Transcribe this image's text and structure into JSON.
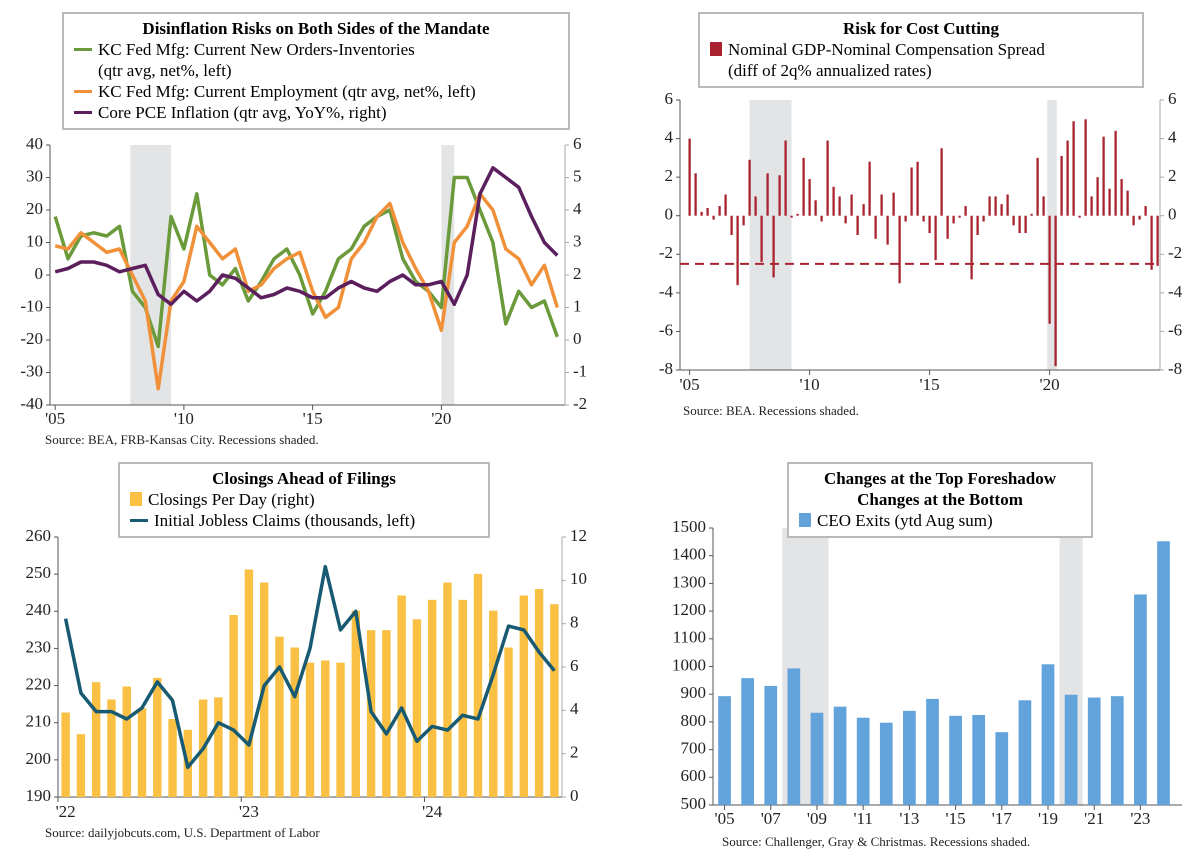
{
  "chart_data": [
    {
      "type": "line",
      "title": "Disinflation Risks on Both Sides of the Mandate",
      "source": "Source: BEA, FRB-Kansas City. Recessions shaded.",
      "x": [
        2005,
        2005.5,
        2006,
        2006.5,
        2007,
        2007.5,
        2008,
        2008.5,
        2009,
        2009.5,
        2010,
        2010.5,
        2011,
        2011.5,
        2012,
        2012.5,
        2013,
        2013.5,
        2014,
        2014.5,
        2015,
        2015.5,
        2016,
        2016.5,
        2017,
        2017.5,
        2018,
        2018.5,
        2019,
        2019.5,
        2020,
        2020.5,
        2021,
        2021.5,
        2022,
        2022.5,
        2023,
        2023.5,
        2024,
        2024.5
      ],
      "series": [
        {
          "name": "KC Fed Mfg: Current New Orders-Inventories\n(qtr avg, net%, left)",
          "color": "#6b9a3b",
          "axis": "y",
          "values": [
            18,
            5,
            12,
            13,
            12,
            15,
            -5,
            -10,
            -22,
            18,
            8,
            25,
            0,
            -3,
            2,
            -8,
            -2,
            5,
            8,
            0,
            -12,
            -5,
            5,
            8,
            15,
            18,
            20,
            5,
            -2,
            -5,
            -10,
            30,
            30,
            20,
            10,
            -15,
            -5,
            -10,
            -8,
            -19
          ]
        },
        {
          "name": "KC Fed Mfg: Current Employment (qtr avg, net%, left)",
          "color": "#f0913a",
          "axis": "y",
          "values": [
            9,
            8,
            13,
            10,
            7,
            8,
            0,
            -8,
            -35,
            -8,
            -2,
            15,
            10,
            5,
            8,
            -5,
            -3,
            2,
            5,
            7,
            -5,
            -13,
            -10,
            5,
            10,
            18,
            22,
            10,
            2,
            -5,
            -17,
            10,
            15,
            25,
            20,
            8,
            5,
            -3,
            3,
            -10
          ]
        },
        {
          "name": "Core PCE Inflation (qtr avg, YoY%, right)",
          "color": "#5b1f5e",
          "axis": "y2",
          "values": [
            2.1,
            2.2,
            2.4,
            2.4,
            2.3,
            2.1,
            2.2,
            2.3,
            1.4,
            1.1,
            1.5,
            1.2,
            1.5,
            2.0,
            1.9,
            1.6,
            1.3,
            1.4,
            1.6,
            1.5,
            1.3,
            1.3,
            1.6,
            1.8,
            1.6,
            1.5,
            1.8,
            2.0,
            1.7,
            1.7,
            1.8,
            1.1,
            2.0,
            4.5,
            5.3,
            5.0,
            4.7,
            3.8,
            3.0,
            2.6
          ]
        }
      ],
      "xlim": [
        2004.8,
        2024.8
      ],
      "xticks": [
        {
          "value": 2005,
          "label": "'05"
        },
        {
          "value": 2010,
          "label": "'10"
        },
        {
          "value": 2015,
          "label": "'15"
        },
        {
          "value": 2020,
          "label": "'20"
        }
      ],
      "ylim": [
        -40,
        40
      ],
      "yticks": [
        -40,
        -30,
        -20,
        -10,
        0,
        10,
        20,
        30,
        40
      ],
      "y2lim": [
        -2,
        6
      ],
      "y2ticks": [
        -2,
        -1,
        0,
        1,
        2,
        3,
        4,
        5,
        6
      ],
      "recessions": [
        [
          2007.92,
          2009.5
        ],
        [
          2020.0,
          2020.5
        ]
      ]
    },
    {
      "type": "bar",
      "title": "Risk for Cost Cutting",
      "source": "Source: BEA. Recessions shaded.",
      "x": [
        2005,
        2005.25,
        2005.5,
        2005.75,
        2006,
        2006.25,
        2006.5,
        2006.75,
        2007,
        2007.25,
        2007.5,
        2007.75,
        2008,
        2008.25,
        2008.5,
        2008.75,
        2009,
        2009.25,
        2009.5,
        2009.75,
        2010,
        2010.25,
        2010.5,
        2010.75,
        2011,
        2011.25,
        2011.5,
        2011.75,
        2012,
        2012.25,
        2012.5,
        2012.75,
        2013,
        2013.25,
        2013.5,
        2013.75,
        2014,
        2014.25,
        2014.5,
        2014.75,
        2015,
        2015.25,
        2015.5,
        2015.75,
        2016,
        2016.25,
        2016.5,
        2016.75,
        2017,
        2017.25,
        2017.5,
        2017.75,
        2018,
        2018.25,
        2018.5,
        2018.75,
        2019,
        2019.25,
        2019.5,
        2019.75,
        2020,
        2020.25,
        2020.5,
        2020.75,
        2021,
        2021.25,
        2021.5,
        2021.75,
        2022,
        2022.25,
        2022.5,
        2022.75,
        2023,
        2023.25,
        2023.5,
        2023.75,
        2024,
        2024.25,
        2024.5
      ],
      "series": [
        {
          "name": "Nominal GDP-Nominal Compensation Spread\n(diff of 2q% annualized rates)",
          "color": "#a8232f",
          "values": [
            4.0,
            2.2,
            0.2,
            0.4,
            -0.2,
            0.5,
            1.1,
            -1.0,
            -3.6,
            -0.5,
            2.9,
            1.0,
            -2.4,
            2.2,
            -3.2,
            2.1,
            3.9,
            -0.1,
            0.1,
            3.0,
            1.9,
            0.8,
            -0.3,
            3.9,
            1.5,
            1.0,
            -0.4,
            1.1,
            -1.0,
            0.6,
            2.8,
            -1.2,
            1.1,
            -1.5,
            1.2,
            -3.5,
            -0.3,
            2.5,
            2.8,
            -0.3,
            -0.9,
            -2.3,
            3.5,
            -1.2,
            -0.4,
            -0.1,
            0.5,
            -3.3,
            -1.0,
            -0.3,
            1.0,
            1.0,
            0.6,
            1.1,
            -0.5,
            -0.9,
            -0.9,
            0.1,
            3.0,
            1.0,
            -5.6,
            -7.8,
            3.1,
            3.9,
            4.9,
            -0.1,
            5.0,
            1.0,
            2.0,
            4.1,
            1.4,
            4.4,
            1.9,
            1.3,
            -0.5,
            -0.2,
            0.5,
            -2.8,
            -2.6
          ]
        }
      ],
      "reference_line": -2.5,
      "xlim": [
        2004.6,
        2024.6
      ],
      "xticks": [
        {
          "value": 2005,
          "label": "'05"
        },
        {
          "value": 2010,
          "label": "'10"
        },
        {
          "value": 2015,
          "label": "'15"
        },
        {
          "value": 2020,
          "label": "'20"
        }
      ],
      "ylim": [
        -8,
        6
      ],
      "yticks": [
        -8,
        -6,
        -4,
        -2,
        0,
        2,
        4,
        6
      ],
      "y2lim": [
        -8,
        6
      ],
      "y2ticks": [
        -8,
        -6,
        -4,
        -2,
        0,
        2,
        4,
        6
      ],
      "recessions": [
        [
          2007.5,
          2009.25
        ],
        [
          2019.9,
          2020.3
        ]
      ]
    },
    {
      "type": "combo",
      "title": "Closings Ahead of Filings",
      "source": "Source: dailyjobcuts.com, U.S. Department of Labor",
      "categories": [
        "'22",
        null,
        null,
        null,
        null,
        null,
        null,
        null,
        null,
        null,
        null,
        null,
        "'23",
        null,
        null,
        null,
        null,
        null,
        null,
        null,
        null,
        null,
        null,
        null,
        "'24",
        null,
        null,
        null,
        null,
        null,
        null,
        null,
        null
      ],
      "series": [
        {
          "name": "Closings Per Day (right)",
          "color": "#f9c043",
          "type": "bar",
          "axis": "y2",
          "values": [
            3.9,
            2.9,
            5.3,
            4.5,
            5.1,
            4.1,
            5.5,
            3.6,
            3.1,
            4.5,
            4.6,
            8.4,
            10.5,
            9.9,
            7.4,
            6.9,
            6.2,
            6.3,
            6.2,
            8.6,
            7.7,
            7.7,
            9.3,
            8.2,
            9.1,
            9.9,
            9.1,
            10.3,
            8.6,
            6.9,
            9.3,
            9.6,
            8.9
          ]
        },
        {
          "name": "Initial Jobless Claims (thousands, left)",
          "color": "#175a72",
          "type": "line",
          "axis": "y",
          "values": [
            238,
            218,
            213,
            213,
            211,
            214,
            221,
            216,
            198,
            203,
            210,
            208,
            204,
            220,
            225,
            217,
            230,
            252,
            235,
            240,
            213,
            207,
            214,
            205,
            209,
            208,
            212,
            211,
            223,
            236,
            235,
            229,
            224
          ]
        }
      ],
      "ylim": [
        190,
        260
      ],
      "yticks": [
        190,
        200,
        210,
        220,
        230,
        240,
        250,
        260
      ],
      "y2lim": [
        0,
        12
      ],
      "y2ticks": [
        0,
        2,
        4,
        6,
        8,
        10,
        12
      ]
    },
    {
      "type": "bar",
      "title": "Changes at the Top Foreshadow\nChanges at the Bottom",
      "source": "Source: Challenger, Gray & Christmas. Recessions shaded.",
      "x": [
        2005,
        2006,
        2007,
        2008,
        2009,
        2010,
        2011,
        2012,
        2013,
        2014,
        2015,
        2016,
        2017,
        2018,
        2019,
        2020,
        2021,
        2022,
        2023,
        2024
      ],
      "series": [
        {
          "name": "CEO Exits (ytd Aug sum)",
          "color": "#62a3db",
          "values": [
            893,
            958,
            930,
            993,
            833,
            855,
            815,
            797,
            840,
            883,
            822,
            825,
            763,
            878,
            1008,
            898,
            888,
            893,
            1260,
            1452
          ]
        }
      ],
      "xlim": [
        2004.5,
        2024.8
      ],
      "xticks": [
        {
          "value": 2005,
          "label": "'05"
        },
        {
          "value": 2007,
          "label": "'07"
        },
        {
          "value": 2009,
          "label": "'09"
        },
        {
          "value": 2011,
          "label": "'11"
        },
        {
          "value": 2013,
          "label": "'13"
        },
        {
          "value": 2015,
          "label": "'15"
        },
        {
          "value": 2017,
          "label": "'17"
        },
        {
          "value": 2019,
          "label": "'19"
        },
        {
          "value": 2021,
          "label": "'21"
        },
        {
          "value": 2023,
          "label": "'23"
        }
      ],
      "ylim": [
        500,
        1500
      ],
      "yticks": [
        500,
        600,
        700,
        800,
        900,
        1000,
        1100,
        1200,
        1300,
        1400,
        1500
      ],
      "recessions": [
        [
          2007.5,
          2009.5
        ],
        [
          2019.5,
          2020.5
        ]
      ]
    }
  ]
}
